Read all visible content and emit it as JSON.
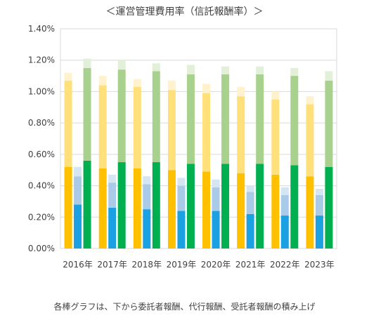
{
  "chart_data": {
    "type": "bar",
    "title": "＜運営管理費用率（信託報酬率）＞",
    "note": "各棒グラフは、下から委託者報酬、代行報酬、受託者報酬の積み上げ",
    "categories": [
      "2016年",
      "2017年",
      "2018年",
      "2019年",
      "2020年",
      "2021年",
      "2022年",
      "2023年"
    ],
    "ylim": [
      0,
      0.014
    ],
    "yticks": [
      "0.00%",
      "0.20%",
      "0.40%",
      "0.60%",
      "0.80%",
      "1.00%",
      "1.20%",
      "1.40%"
    ],
    "grid": true,
    "legend": "none",
    "groups": [
      {
        "colors": [
          "#ffc000",
          "#ffe07a",
          "#fff2cc"
        ],
        "stack": [
          [
            0.0052,
            0.0055,
            0.0005
          ],
          [
            0.0051,
            0.0053,
            0.0006
          ],
          [
            0.0051,
            0.0052,
            0.0005
          ],
          [
            0.005,
            0.0051,
            0.0006
          ],
          [
            0.0049,
            0.005,
            0.0006
          ],
          [
            0.0048,
            0.0049,
            0.0006
          ],
          [
            0.0047,
            0.0048,
            0.0005
          ],
          [
            0.0046,
            0.0046,
            0.0005
          ]
        ]
      },
      {
        "colors": [
          "#1ba1e2",
          "#a9cbe8",
          "#d5e5f2"
        ],
        "stack": [
          [
            0.0028,
            0.0018,
            0.0006
          ],
          [
            0.0026,
            0.0016,
            0.0005
          ],
          [
            0.0025,
            0.0016,
            0.0005
          ],
          [
            0.0024,
            0.0016,
            0.0005
          ],
          [
            0.0024,
            0.0015,
            0.0005
          ],
          [
            0.0022,
            0.0014,
            0.0004
          ],
          [
            0.0021,
            0.0013,
            0.0005
          ],
          [
            0.0021,
            0.0013,
            0.0004
          ]
        ]
      },
      {
        "colors": [
          "#00b050",
          "#a9d18e",
          "#e2efd9"
        ],
        "stack": [
          [
            0.0056,
            0.0059,
            0.0006
          ],
          [
            0.0055,
            0.0059,
            0.0006
          ],
          [
            0.0055,
            0.0058,
            0.0005
          ],
          [
            0.0054,
            0.0057,
            0.0006
          ],
          [
            0.0054,
            0.0057,
            0.0005
          ],
          [
            0.0054,
            0.0057,
            0.0005
          ],
          [
            0.0053,
            0.0057,
            0.0005
          ],
          [
            0.0052,
            0.0055,
            0.0006
          ]
        ]
      }
    ]
  }
}
